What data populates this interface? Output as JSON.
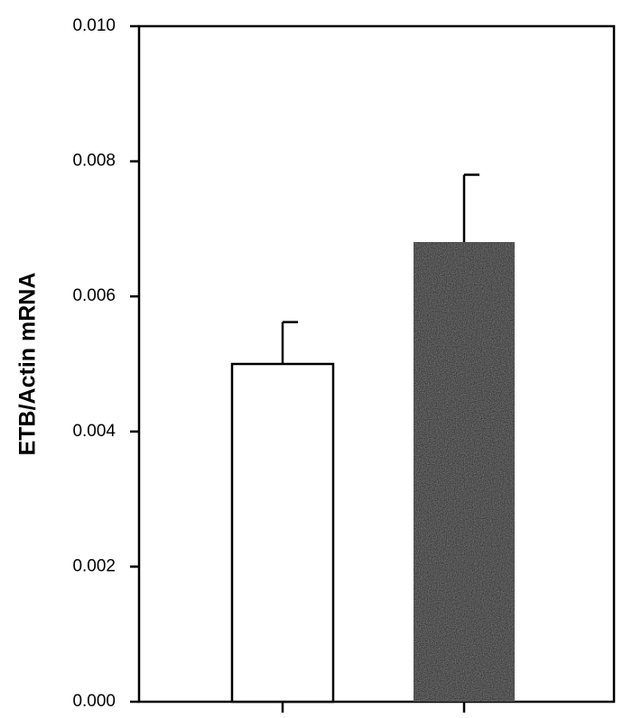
{
  "chart_data": {
    "type": "bar",
    "title": "",
    "xlabel": "",
    "ylabel": "ETB/Actin mRNA",
    "categories": [
      "",
      ""
    ],
    "values": [
      0.005,
      0.0068
    ],
    "errors": [
      0.00062,
      0.001
    ],
    "bar_colors": [
      "#ffffff",
      "#111111"
    ],
    "ylim": [
      0,
      0.01
    ],
    "yticks": [
      "0.000",
      "0.002",
      "0.004",
      "0.006",
      "0.008",
      "0.010"
    ],
    "grid": false,
    "legend": "none"
  }
}
